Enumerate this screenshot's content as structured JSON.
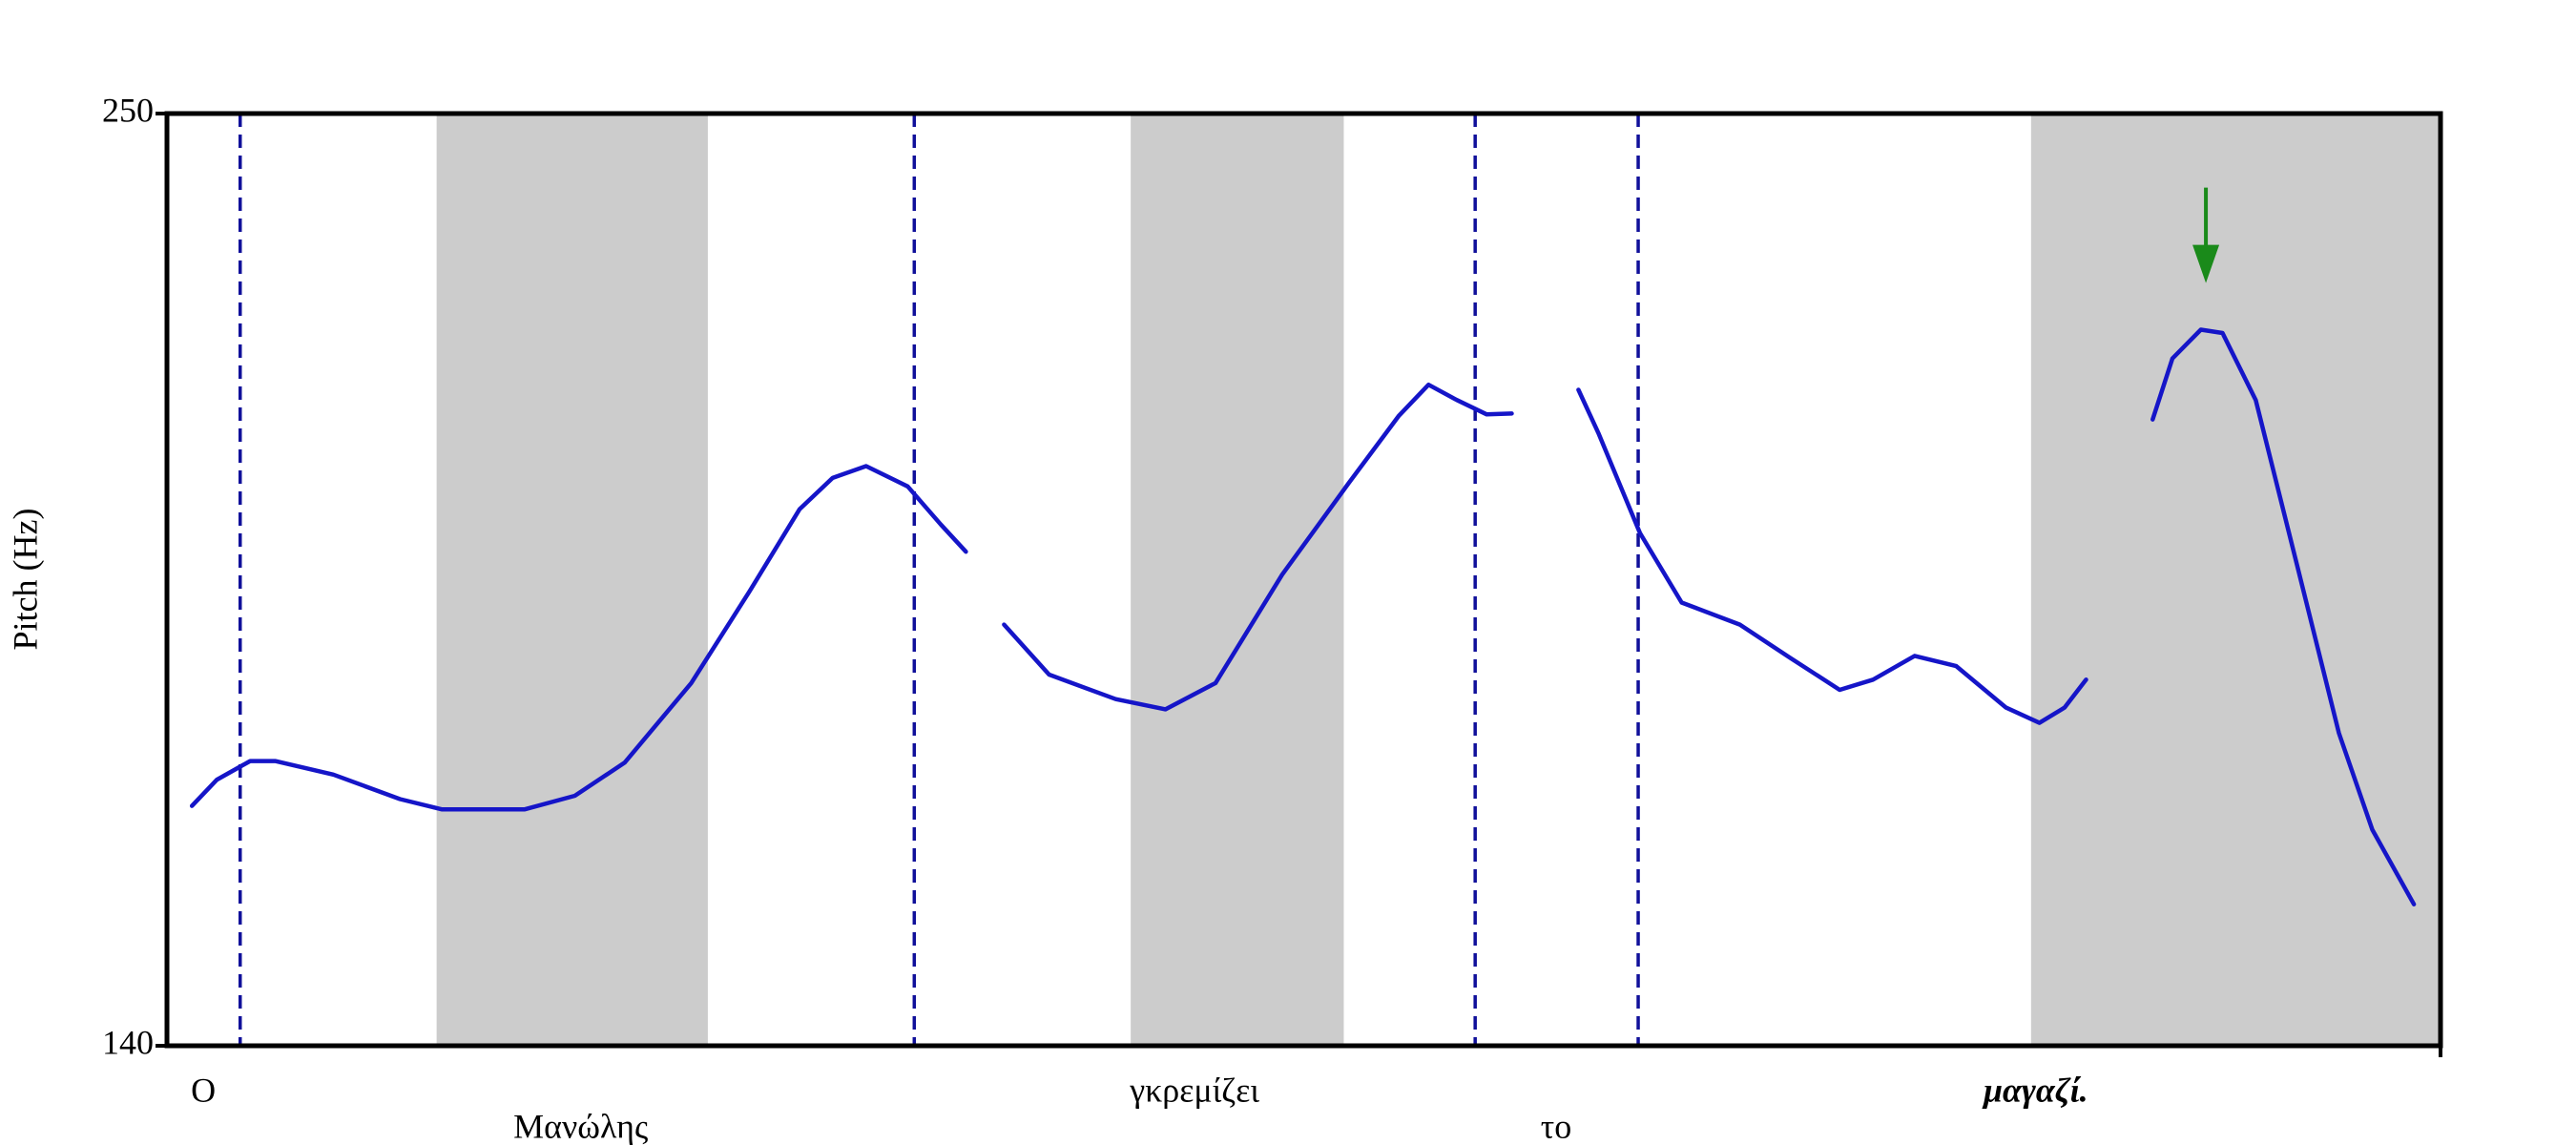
{
  "chart_data": {
    "type": "line",
    "ylabel": "Pitch (Hz)",
    "ylim": [
      140,
      250
    ],
    "yticks": [
      140,
      250
    ],
    "xlim": [
      0,
      100
    ],
    "shaded": [
      [
        11.86,
        23.79
      ],
      [
        42.39,
        51.76
      ],
      [
        81.99,
        100
      ]
    ],
    "shade_color": "#cccccc",
    "boundaries": [
      3.22,
      32.87,
      57.54,
      64.71
    ],
    "boundary_color": "#10109a",
    "words": [
      {
        "text": "Ο",
        "x": 1.6,
        "row": 1,
        "emphasis": false
      },
      {
        "text": "Μανώλης",
        "x": 18.2,
        "row": 2,
        "emphasis": false
      },
      {
        "text": "γκρεμίζει",
        "x": 45.2,
        "row": 1,
        "emphasis": false
      },
      {
        "text": "το",
        "x": 61.1,
        "row": 2,
        "emphasis": false
      },
      {
        "text": "μαγαζί.",
        "x": 82.2,
        "row": 1,
        "emphasis": true
      }
    ],
    "annotation": {
      "x": 89.68,
      "y": 230,
      "color": "#1a8a1a"
    },
    "series": [
      {
        "color": "#1515c8",
        "x": [
          1.1,
          2.2,
          3.66,
          4.76,
          7.32,
          10.25,
          12.08,
          15.74,
          17.94,
          20.13,
          23.06,
          25.62,
          27.82,
          29.28,
          30.75,
          32.58,
          34.04,
          35.14,
          null,
          36.82,
          38.8,
          41.73,
          43.92,
          46.12,
          49.05,
          51.98,
          54.17,
          55.49,
          56.73,
          58.05,
          59.15,
          null,
          62.08,
          62.96,
          64.79,
          66.62,
          69.18,
          71.38,
          73.57,
          75.04,
          76.87,
          78.7,
          80.89,
          82.36,
          83.46,
          84.41,
          null,
          87.34,
          88.21,
          89.46,
          90.41,
          91.87,
          93.7,
          95.53,
          97.0,
          98.83
        ],
        "values": [
          168.3,
          171.4,
          173.6,
          173.6,
          172.0,
          169.1,
          167.9,
          167.9,
          169.5,
          173.4,
          182.8,
          193.6,
          203.3,
          207.0,
          208.4,
          206.0,
          201.5,
          198.3,
          null,
          189.7,
          183.8,
          180.9,
          179.7,
          182.8,
          195.6,
          206.4,
          214.3,
          218.0,
          216.2,
          214.5,
          214.6,
          null,
          217.4,
          212.3,
          200.5,
          192.3,
          189.7,
          185.8,
          182.0,
          183.2,
          186.0,
          184.8,
          179.9,
          178.1,
          179.9,
          183.2,
          null,
          213.9,
          221.1,
          224.5,
          224.1,
          216.2,
          196.6,
          176.9,
          165.5,
          156.7
        ]
      }
    ]
  }
}
